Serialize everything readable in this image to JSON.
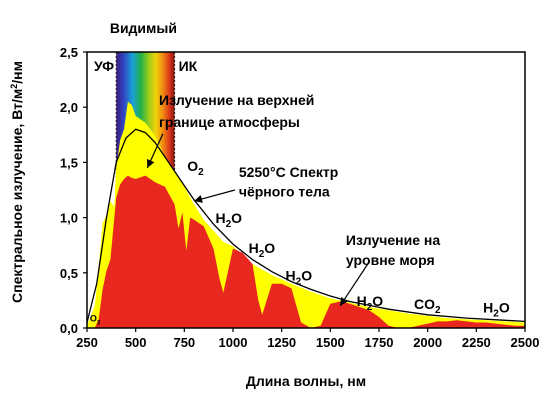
{
  "chart_data": {
    "type": "area",
    "xlabel": "Длина волны, нм",
    "ylabel": "Спектральное излучение, Вт/м²/нм",
    "ylabel_parts": {
      "main": "Спектральное излучение, Вт/м",
      "sup": "2",
      "tail": "/нм"
    },
    "xlim": [
      250,
      2500
    ],
    "ylim": [
      0,
      2.5
    ],
    "x_ticks": [
      250,
      500,
      750,
      1000,
      1250,
      1500,
      1750,
      2000,
      2250,
      2500
    ],
    "x_tick_labels": [
      "250",
      "500",
      "750",
      "1000",
      "1250",
      "1500",
      "1750",
      "2000",
      "2250",
      "2500"
    ],
    "y_ticks": [
      0,
      0.5,
      1.0,
      1.5,
      2.0,
      2.5
    ],
    "y_tick_labels": [
      "0,0",
      "0,5",
      "1,0",
      "1,5",
      "2,0",
      "2,5"
    ],
    "bands": {
      "uv_label": "УФ",
      "visible_label": "Видимый",
      "ir_label": "ИК",
      "visible_range": [
        400,
        700
      ]
    },
    "colors": {
      "top_of_atmosphere": "#ffff00",
      "sea_level": "#e8281e",
      "blackbody": "#000000"
    },
    "series": [
      {
        "name": "Излучение на верхней границе атмосферы",
        "x": [
          250,
          290,
          310,
          330,
          350,
          370,
          390,
          400,
          420,
          440,
          460,
          480,
          500,
          550,
          600,
          650,
          700,
          750,
          800,
          850,
          900,
          950,
          1000,
          1100,
          1200,
          1300,
          1400,
          1500,
          1600,
          1700,
          1800,
          1900,
          2000,
          2100,
          2200,
          2300,
          2400,
          2500
        ],
        "y": [
          0.02,
          0.2,
          0.55,
          0.95,
          1.02,
          1.15,
          1.1,
          1.45,
          1.7,
          1.8,
          2.05,
          2.02,
          1.92,
          1.86,
          1.74,
          1.55,
          1.42,
          1.28,
          1.12,
          0.98,
          0.88,
          0.78,
          0.74,
          0.58,
          0.48,
          0.4,
          0.33,
          0.27,
          0.23,
          0.19,
          0.16,
          0.13,
          0.11,
          0.09,
          0.08,
          0.07,
          0.06,
          0.05
        ]
      },
      {
        "name": "Излучение на уровне моря",
        "x": [
          290,
          310,
          330,
          350,
          370,
          400,
          420,
          440,
          460,
          480,
          500,
          550,
          600,
          650,
          700,
          720,
          740,
          760,
          780,
          800,
          850,
          900,
          930,
          950,
          1000,
          1050,
          1100,
          1130,
          1150,
          1200,
          1250,
          1300,
          1350,
          1400,
          1450,
          1500,
          1550,
          1600,
          1650,
          1700,
          1750,
          1800,
          1850,
          1900,
          1950,
          2000,
          2050,
          2100,
          2150,
          2200,
          2250,
          2300,
          2350,
          2400,
          2450,
          2500
        ],
        "y": [
          0.0,
          0.08,
          0.35,
          0.52,
          0.62,
          1.18,
          1.3,
          1.35,
          1.38,
          1.36,
          1.35,
          1.38,
          1.32,
          1.28,
          1.12,
          0.9,
          1.05,
          0.7,
          1.0,
          0.98,
          0.92,
          0.72,
          0.45,
          0.32,
          0.72,
          0.68,
          0.58,
          0.25,
          0.12,
          0.4,
          0.4,
          0.36,
          0.05,
          0.0,
          0.02,
          0.22,
          0.24,
          0.22,
          0.19,
          0.16,
          0.1,
          0.02,
          0.0,
          0.0,
          0.02,
          0.04,
          0.06,
          0.06,
          0.07,
          0.06,
          0.05,
          0.05,
          0.04,
          0.03,
          0.02,
          0.02
        ]
      },
      {
        "name": "5250°C Спектр чёрного тела",
        "x": [
          250,
          300,
          350,
          400,
          450,
          500,
          550,
          600,
          650,
          700,
          750,
          800,
          900,
          1000,
          1100,
          1200,
          1300,
          1400,
          1500,
          1600,
          1800,
          2000,
          2200,
          2400,
          2500
        ],
        "y": [
          0.05,
          0.4,
          1.0,
          1.5,
          1.72,
          1.8,
          1.77,
          1.68,
          1.55,
          1.42,
          1.29,
          1.16,
          0.94,
          0.76,
          0.62,
          0.51,
          0.42,
          0.35,
          0.29,
          0.24,
          0.17,
          0.12,
          0.09,
          0.07,
          0.06
        ]
      }
    ],
    "annotations": {
      "top_line1": "Излучение на верхней",
      "top_line2": "границе атмосферы",
      "bb_line1": "5250°C Спектр",
      "bb_line2": "чёрного тела",
      "sea_line1": "Излучение на",
      "sea_line2": "уровне моря",
      "absorbers": [
        {
          "base": "O",
          "sub": "2",
          "x": 765,
          "y": 1.42
        },
        {
          "base": "H",
          "sub": "2",
          "tail": "O",
          "x": 910,
          "y": 0.95
        },
        {
          "base": "H",
          "sub": "2",
          "tail": "O",
          "x": 1080,
          "y": 0.68
        },
        {
          "base": "H",
          "sub": "2",
          "tail": "O",
          "x": 1270,
          "y": 0.43
        },
        {
          "base": "H",
          "sub": "2",
          "tail": "O",
          "x": 1635,
          "y": 0.2
        },
        {
          "base": "CO",
          "sub": "2",
          "x": 1930,
          "y": 0.17
        },
        {
          "base": "H",
          "sub": "2",
          "tail": "O",
          "x": 2285,
          "y": 0.14
        },
        {
          "base": "O",
          "sub": "3",
          "x": 265,
          "y": 0.06,
          "small": true
        }
      ]
    }
  }
}
